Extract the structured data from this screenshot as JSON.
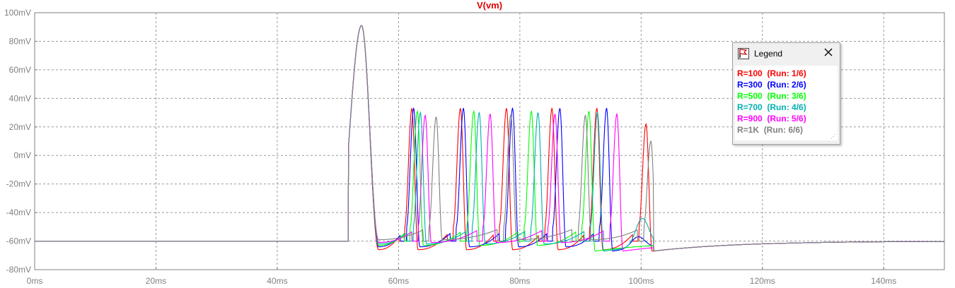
{
  "chart_data": {
    "type": "line",
    "title": "V(vm)",
    "title_color": "#e00000",
    "x_unit": "ms",
    "y_unit": "mV",
    "xlim": [
      0,
      150
    ],
    "ylim": [
      -80,
      100
    ],
    "x_ticks": [
      0,
      20,
      40,
      60,
      80,
      100,
      120,
      140
    ],
    "x_tick_labels": [
      "0ms",
      "20ms",
      "40ms",
      "60ms",
      "80ms",
      "100ms",
      "120ms",
      "140ms"
    ],
    "y_ticks": [
      100,
      80,
      60,
      40,
      20,
      0,
      -20,
      -40,
      -60,
      -80
    ],
    "y_tick_labels": [
      "100mV",
      "80mV",
      "60mV",
      "40mV",
      "20mV",
      "0mV",
      "-20mV",
      "-40mV",
      "-60mV",
      "-80mV"
    ],
    "grid": true,
    "legend_placement": "top-right",
    "baseline": -60,
    "stimulus": {
      "start": 50,
      "end": 100
    },
    "series": [
      {
        "name": "R=100",
        "run": "(Run: 1/6)",
        "color": "#ff0000",
        "spike_times": [
          53.9,
          62.2,
          70.2,
          77.8,
          85.3,
          92.7,
          100.8
        ],
        "peaks": [
          91,
          33,
          33,
          33,
          33,
          33,
          22
        ],
        "troughs": [
          -66,
          -66,
          -66,
          -66,
          -66,
          -66,
          -67
        ]
      },
      {
        "name": "R=300",
        "run": "(Run: 2/6)",
        "color": "#0000ff",
        "spike_times": [
          53.9,
          62.5,
          70.7,
          78.8,
          86.6,
          94.3
        ],
        "peaks": [
          91,
          33,
          33,
          33,
          33,
          33
        ],
        "troughs": [
          -64,
          -64,
          -64,
          -64,
          -64,
          -67
        ],
        "subthreshold": [
          [
            99.5,
            -52
          ]
        ]
      },
      {
        "name": "R=500",
        "run": "(Run: 3/6)",
        "color": "#00ff00",
        "spike_times": [
          53.9,
          63.1,
          72.4,
          81.9,
          91.4
        ],
        "peaks": [
          91,
          31,
          31,
          31,
          31
        ],
        "troughs": [
          -63,
          -63,
          -63,
          -63,
          -67
        ]
      },
      {
        "name": "R=700",
        "run": "(Run: 4/6)",
        "color": "#00b0b0",
        "spike_times": [
          53.9,
          63.6,
          73.3,
          83.0,
          92.8
        ],
        "peaks": [
          91,
          30,
          30,
          30,
          30
        ],
        "troughs": [
          -62,
          -62,
          -62,
          -62,
          -67
        ],
        "subthreshold": [
          [
            100.2,
            -40
          ]
        ]
      },
      {
        "name": "R=900",
        "run": "(Run: 5/6)",
        "color": "#ff00ff",
        "spike_times": [
          53.9,
          64.4,
          75.1,
          85.8,
          96.0
        ],
        "peaks": [
          91,
          28,
          29,
          29,
          29
        ],
        "troughs": [
          -61,
          -61,
          -61,
          -61,
          -67
        ]
      },
      {
        "name": "R=1K",
        "run": "(Run: 6/6)",
        "color": "#808080",
        "spike_times": [
          53.9,
          66.2,
          78.5,
          90.8,
          101.6
        ],
        "peaks": [
          91,
          27,
          28,
          28,
          10
        ],
        "troughs": [
          -59,
          -59,
          -59,
          -59,
          -67
        ]
      }
    ]
  },
  "legend": {
    "title": "Legend",
    "rows": [
      {
        "name": "R=100",
        "run": "(Run: 1/6)"
      },
      {
        "name": "R=300",
        "run": "(Run: 2/6)"
      },
      {
        "name": "R=500",
        "run": "(Run: 3/6)"
      },
      {
        "name": "R=700",
        "run": "(Run: 4/6)"
      },
      {
        "name": "R=900",
        "run": "(Run: 5/6)"
      },
      {
        "name": "R=1K",
        "run": "(Run: 6/6)"
      }
    ]
  },
  "icons": {
    "legend": "legend-flag-icon",
    "close": "close-icon"
  }
}
